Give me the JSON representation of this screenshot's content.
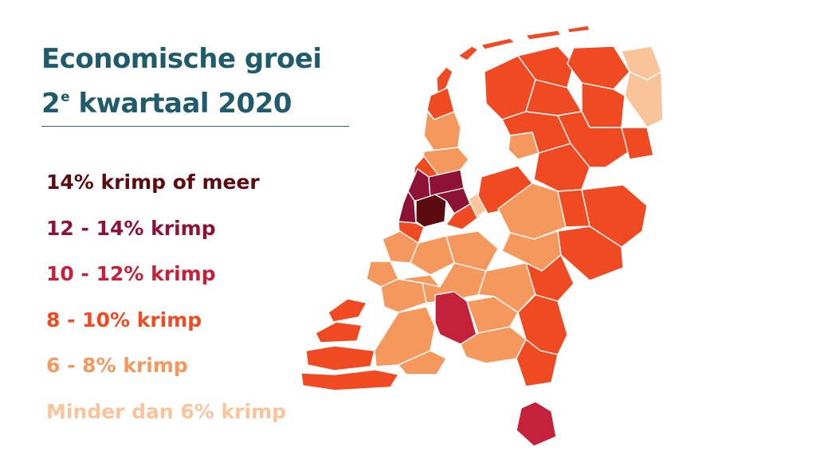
{
  "title": {
    "line1": "Economische groei",
    "line2_number": "2",
    "line2_sup": "e",
    "line2_rest": " kwartaal 2020"
  },
  "legend": [
    {
      "label": "14% krimp of meer",
      "color": "#5c0b10"
    },
    {
      "label": "12 - 14% krimp",
      "color": "#8e1136"
    },
    {
      "label": "10 - 12% krimp",
      "color": "#c4213a"
    },
    {
      "label": "8 - 10% krimp",
      "color": "#f04a22"
    },
    {
      "label": "6 - 8% krimp",
      "color": "#f5985e"
    },
    {
      "label": "Minder dan 6% krimp",
      "color": "#f9c49a"
    }
  ],
  "colors": {
    "title": "#1f5b6b",
    "region_border": "#ffffff"
  }
}
